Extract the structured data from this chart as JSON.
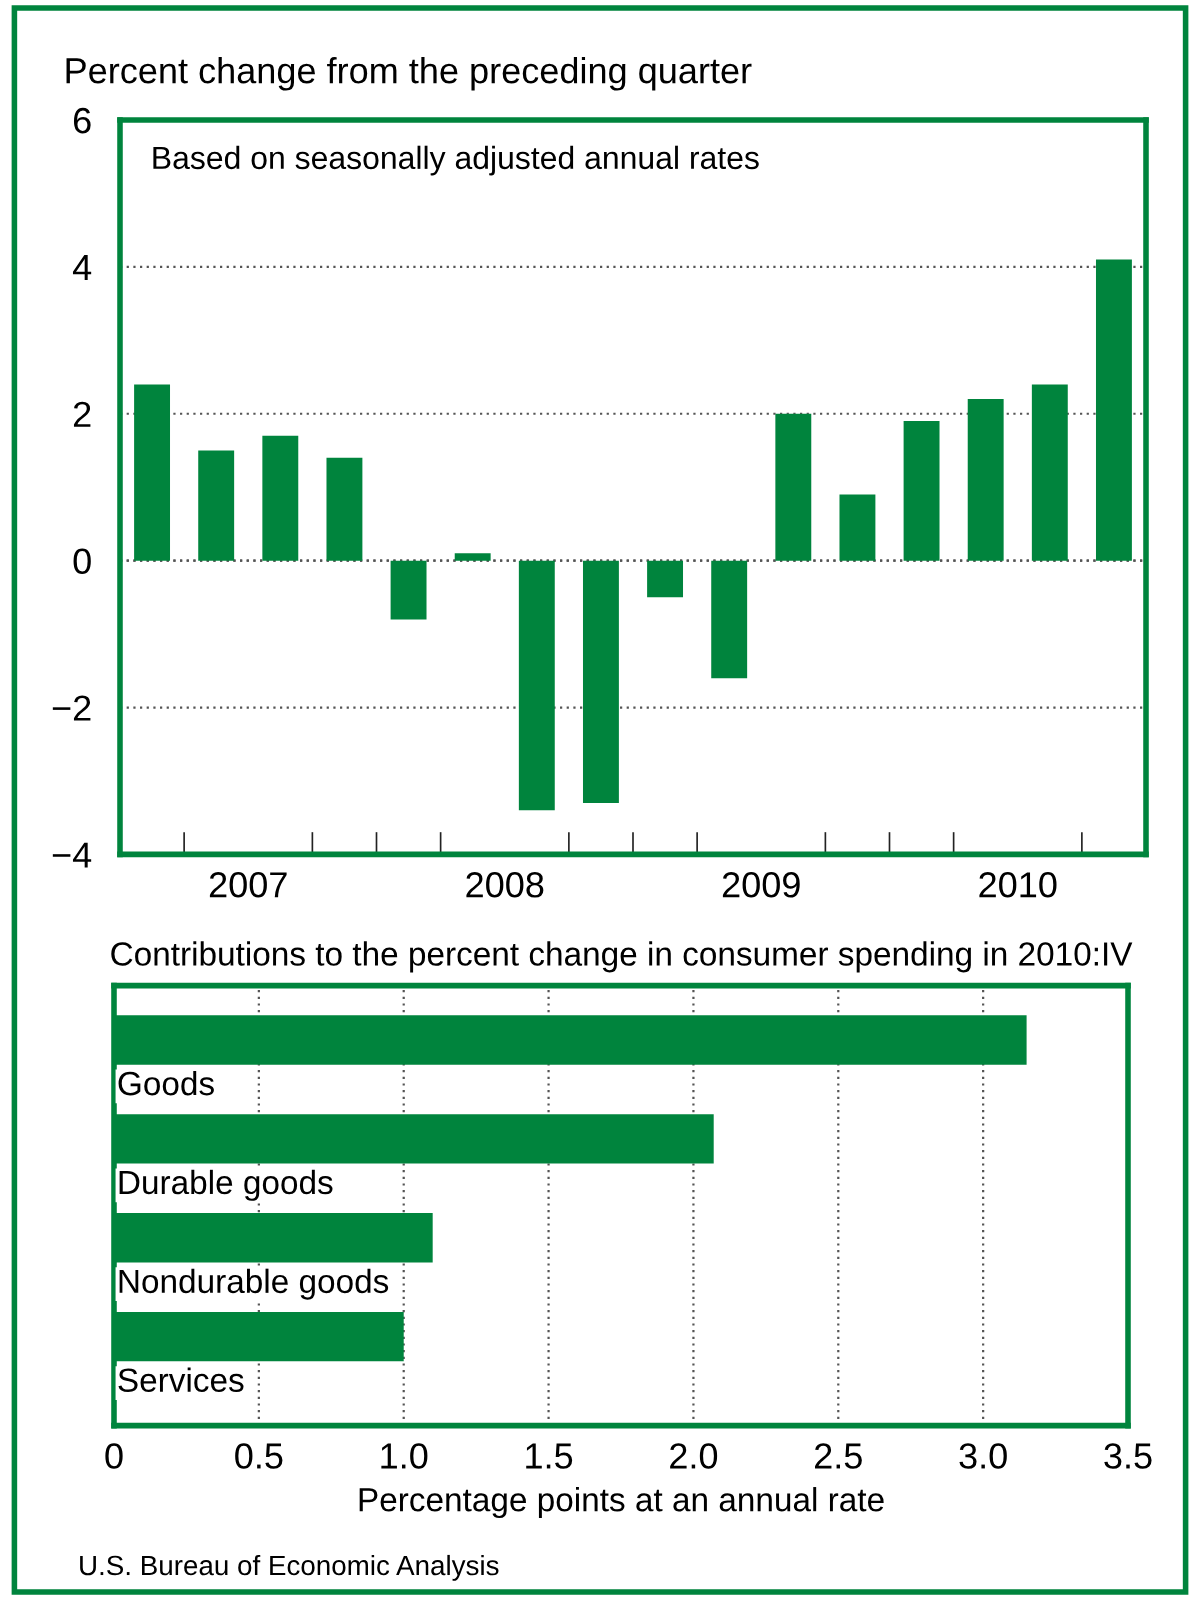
{
  "chart_data": [
    {
      "type": "bar",
      "title": "Percent change from the preceding quarter",
      "annotations": [
        "Based on seasonally adjusted annual rates"
      ],
      "x": [
        2007.125,
        2007.375,
        2007.625,
        2007.875,
        2008.125,
        2008.375,
        2008.625,
        2008.875,
        2009.125,
        2009.375,
        2009.625,
        2009.875,
        2010.125,
        2010.375,
        2010.625,
        2010.875
      ],
      "values": [
        2.4,
        1.5,
        1.7,
        1.4,
        -0.8,
        0.1,
        -3.4,
        -3.3,
        -0.5,
        -1.6,
        2.0,
        0.9,
        1.9,
        2.2,
        2.4,
        4.1
      ],
      "color": "#00843d",
      "xlim": [
        2007,
        2011
      ],
      "xticks": [
        {
          "value": 2007.5,
          "label": "2007"
        },
        {
          "value": 2008.5,
          "label": "2008"
        },
        {
          "value": 2009.5,
          "label": "2009"
        },
        {
          "value": 2010.5,
          "label": "2010"
        },
        {
          "value": 2007.25,
          "label": null
        },
        {
          "value": 2007.75,
          "label": null
        },
        {
          "value": 2008,
          "label": null
        },
        {
          "value": 2008.25,
          "label": null
        },
        {
          "value": 2008.75,
          "label": null
        },
        {
          "value": 2009,
          "label": null
        },
        {
          "value": 2009.25,
          "label": null
        },
        {
          "value": 2009.75,
          "label": null
        },
        {
          "value": 2010,
          "label": null
        },
        {
          "value": 2010.25,
          "label": null
        },
        {
          "value": 2010.75,
          "label": null
        }
      ],
      "ylim": [
        -4,
        6
      ],
      "yticks": [
        {
          "value": -4,
          "label": "−4"
        },
        {
          "value": -2,
          "label": "−2"
        },
        0,
        2,
        4,
        6
      ],
      "grid": "y"
    },
    {
      "type": "bar",
      "orientation": "horizontal",
      "title": "Contributions to the percent change in consumer spending in 2010:IV",
      "xlabel": "Percentage points at an annual rate",
      "categories": [
        "Goods",
        "Durable goods",
        "Nondurable goods",
        "Services"
      ],
      "values": [
        3.15,
        2.07,
        1.1,
        1.0
      ],
      "color": "#00843d",
      "xlim": [
        0,
        3.5
      ],
      "xticks": [
        0,
        0.5,
        {
          "value": 1,
          "label": "1.0"
        },
        1.5,
        {
          "value": 2,
          "label": "2.0"
        },
        2.5,
        {
          "value": 3,
          "label": "3.0"
        },
        3.5
      ],
      "grid": "x",
      "annotations": [
        "U.S. Bureau of Economic Analysis"
      ]
    }
  ]
}
